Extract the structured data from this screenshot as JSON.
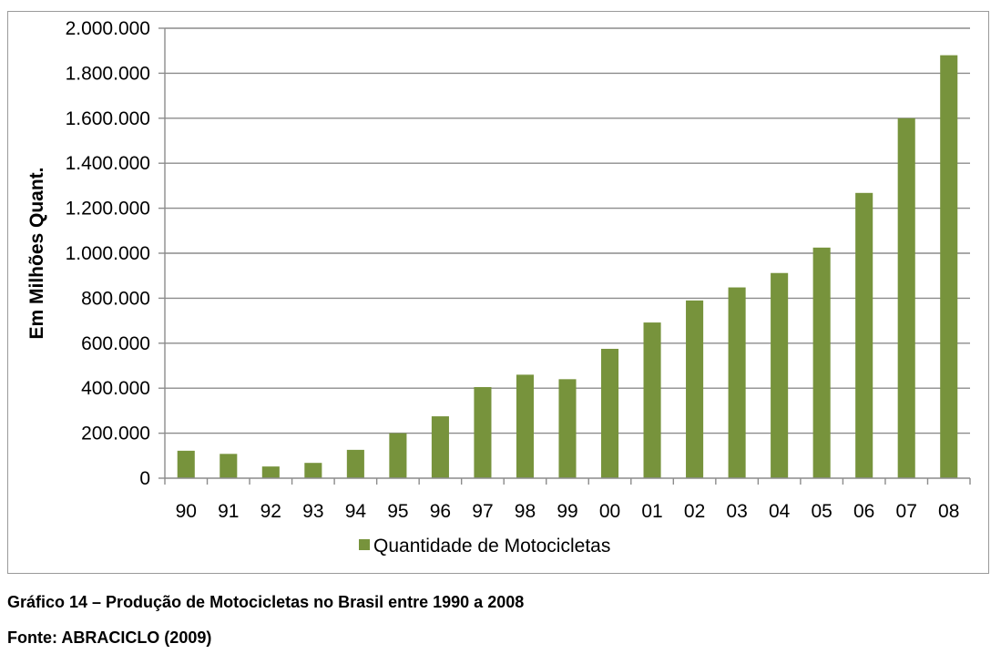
{
  "chart_data": {
    "type": "bar",
    "title": "",
    "xlabel": "",
    "ylabel": "Em Milhões Quant.",
    "categories": [
      "90",
      "91",
      "92",
      "93",
      "94",
      "95",
      "96",
      "97",
      "98",
      "99",
      "00",
      "01",
      "02",
      "03",
      "04",
      "05",
      "06",
      "07",
      "08"
    ],
    "series": [
      {
        "name": "Quantidade de Motocicletas",
        "values": [
          122000,
          108000,
          52000,
          68000,
          126000,
          200000,
          275000,
          405000,
          460000,
          440000,
          575000,
          692000,
          790000,
          848000,
          912000,
          1025000,
          1268000,
          1600000,
          1880000
        ]
      }
    ],
    "ylim": [
      0,
      2000000
    ],
    "yticks": [
      0,
      200000,
      400000,
      600000,
      800000,
      1000000,
      1200000,
      1400000,
      1600000,
      1800000,
      2000000
    ],
    "ytick_labels": [
      "0",
      "200.000",
      "400.000",
      "600.000",
      "800.000",
      "1.000.000",
      "1.200.000",
      "1.400.000",
      "1.600.000",
      "1.800.000",
      "2.000.000"
    ],
    "grid": true,
    "legend": "bottom",
    "bar_color": "#77933C",
    "grid_color": "#8c8c8c",
    "axis_color": "#8c8c8c"
  },
  "caption": {
    "title": "Gráfico 14 – Produção de Motocicletas no Brasil entre 1990 a 2008",
    "source": "Fonte: ABRACICLO (2009)"
  }
}
